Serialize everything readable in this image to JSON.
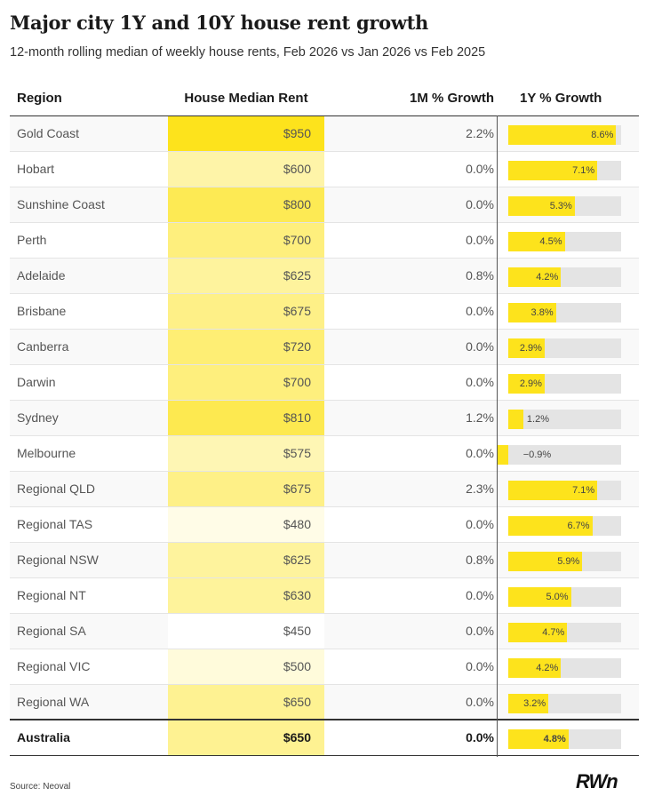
{
  "header": {
    "title": "Major city 1Y and 10Y house rent growth",
    "subtitle": "12-month rolling median of weekly house rents, Feb 2026 vs Jan 2026 vs Feb 2025"
  },
  "footer": {
    "source": "Source: Neoval",
    "logo": "RWn"
  },
  "colors": {
    "bar": "#fde31c",
    "track": "#e4e4e4",
    "heat_low": "#ffffff",
    "heat_high": "#fde31c"
  },
  "chart_data": {
    "type": "table",
    "title": "Major city 1Y and 10Y house rent growth",
    "columns": [
      "Region",
      "House Median Rent",
      "1M % Growth",
      "1Y % Growth"
    ],
    "rows": [
      {
        "region": "Gold Coast",
        "rent": "$950",
        "rent_value": 950,
        "m1": "2.2%",
        "y1": "8.6%",
        "y1_value": 8.6,
        "group": "city"
      },
      {
        "region": "Hobart",
        "rent": "$600",
        "rent_value": 600,
        "m1": "0.0%",
        "y1": "7.1%",
        "y1_value": 7.1,
        "group": "city"
      },
      {
        "region": "Sunshine Coast",
        "rent": "$800",
        "rent_value": 800,
        "m1": "0.0%",
        "y1": "5.3%",
        "y1_value": 5.3,
        "group": "city"
      },
      {
        "region": "Perth",
        "rent": "$700",
        "rent_value": 700,
        "m1": "0.0%",
        "y1": "4.5%",
        "y1_value": 4.5,
        "group": "city"
      },
      {
        "region": "Adelaide",
        "rent": "$625",
        "rent_value": 625,
        "m1": "0.8%",
        "y1": "4.2%",
        "y1_value": 4.2,
        "group": "city"
      },
      {
        "region": "Brisbane",
        "rent": "$675",
        "rent_value": 675,
        "m1": "0.0%",
        "y1": "3.8%",
        "y1_value": 3.8,
        "group": "city"
      },
      {
        "region": "Canberra",
        "rent": "$720",
        "rent_value": 720,
        "m1": "0.0%",
        "y1": "2.9%",
        "y1_value": 2.9,
        "group": "city"
      },
      {
        "region": "Darwin",
        "rent": "$700",
        "rent_value": 700,
        "m1": "0.0%",
        "y1": "2.9%",
        "y1_value": 2.9,
        "group": "city"
      },
      {
        "region": "Sydney",
        "rent": "$810",
        "rent_value": 810,
        "m1": "1.2%",
        "y1": "1.2%",
        "y1_value": 1.2,
        "group": "city"
      },
      {
        "region": "Melbourne",
        "rent": "$575",
        "rent_value": 575,
        "m1": "0.0%",
        "y1": "−0.9%",
        "y1_value": -0.9,
        "group": "city"
      },
      {
        "region": "Regional QLD",
        "rent": "$675",
        "rent_value": 675,
        "m1": "2.3%",
        "y1": "7.1%",
        "y1_value": 7.1,
        "group": "regional"
      },
      {
        "region": "Regional TAS",
        "rent": "$480",
        "rent_value": 480,
        "m1": "0.0%",
        "y1": "6.7%",
        "y1_value": 6.7,
        "group": "regional"
      },
      {
        "region": "Regional NSW",
        "rent": "$625",
        "rent_value": 625,
        "m1": "0.8%",
        "y1": "5.9%",
        "y1_value": 5.9,
        "group": "regional"
      },
      {
        "region": "Regional NT",
        "rent": "$630",
        "rent_value": 630,
        "m1": "0.0%",
        "y1": "5.0%",
        "y1_value": 5.0,
        "group": "regional"
      },
      {
        "region": "Regional SA",
        "rent": "$450",
        "rent_value": 450,
        "m1": "0.0%",
        "y1": "4.7%",
        "y1_value": 4.7,
        "group": "regional"
      },
      {
        "region": "Regional VIC",
        "rent": "$500",
        "rent_value": 500,
        "m1": "0.0%",
        "y1": "4.2%",
        "y1_value": 4.2,
        "group": "regional"
      },
      {
        "region": "Regional WA",
        "rent": "$650",
        "rent_value": 650,
        "m1": "0.0%",
        "y1": "3.2%",
        "y1_value": 3.2,
        "group": "regional"
      },
      {
        "region": "Australia",
        "rent": "$650",
        "rent_value": 650,
        "m1": "0.0%",
        "y1": "4.8%",
        "y1_value": 4.8,
        "group": "total"
      }
    ],
    "rent_color_range": [
      450,
      950
    ],
    "y1_axis_range": [
      -1,
      9
    ]
  }
}
